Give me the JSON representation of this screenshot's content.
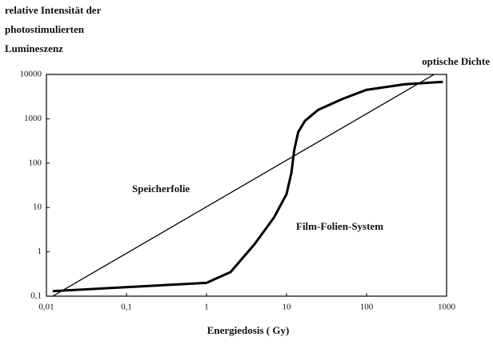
{
  "chart_data": {
    "type": "line",
    "ylabel": [
      "relative Intensität der",
      "photostimulierten",
      "Lumineszenz"
    ],
    "y2label": "optische Dichte",
    "xlabel": "Energiedosis ( Gy)",
    "annotations": [
      "Speicherfolie",
      "Film-Folien-System"
    ],
    "log_x": true,
    "log_y": true,
    "xlim": [
      0.01,
      1000
    ],
    "ylim": [
      0.1,
      10000
    ],
    "xticks": [
      {
        "value": 0.01,
        "label": "0,01"
      },
      {
        "value": 0.1,
        "label": "0,1"
      },
      1,
      10,
      100,
      1000
    ],
    "yticks": [
      {
        "value": 0.1,
        "label": "0,1"
      },
      1,
      10,
      100,
      1000,
      10000
    ],
    "series": [
      {
        "name": "Speicherfolie",
        "color": "#000000",
        "width": 1.3,
        "x": [
          0.012,
          700
        ],
        "values": [
          0.1,
          10000
        ]
      },
      {
        "name": "Film-Folien-System",
        "color": "#000000",
        "width": 3,
        "x": [
          0.012,
          0.1,
          1,
          2,
          4,
          7,
          10,
          11.5,
          12.5,
          14,
          17,
          25,
          50,
          100,
          300,
          900
        ],
        "values": [
          0.13,
          0.16,
          0.2,
          0.35,
          1.5,
          6,
          20,
          60,
          200,
          500,
          900,
          1600,
          2800,
          4500,
          6000,
          6800
        ]
      }
    ]
  }
}
